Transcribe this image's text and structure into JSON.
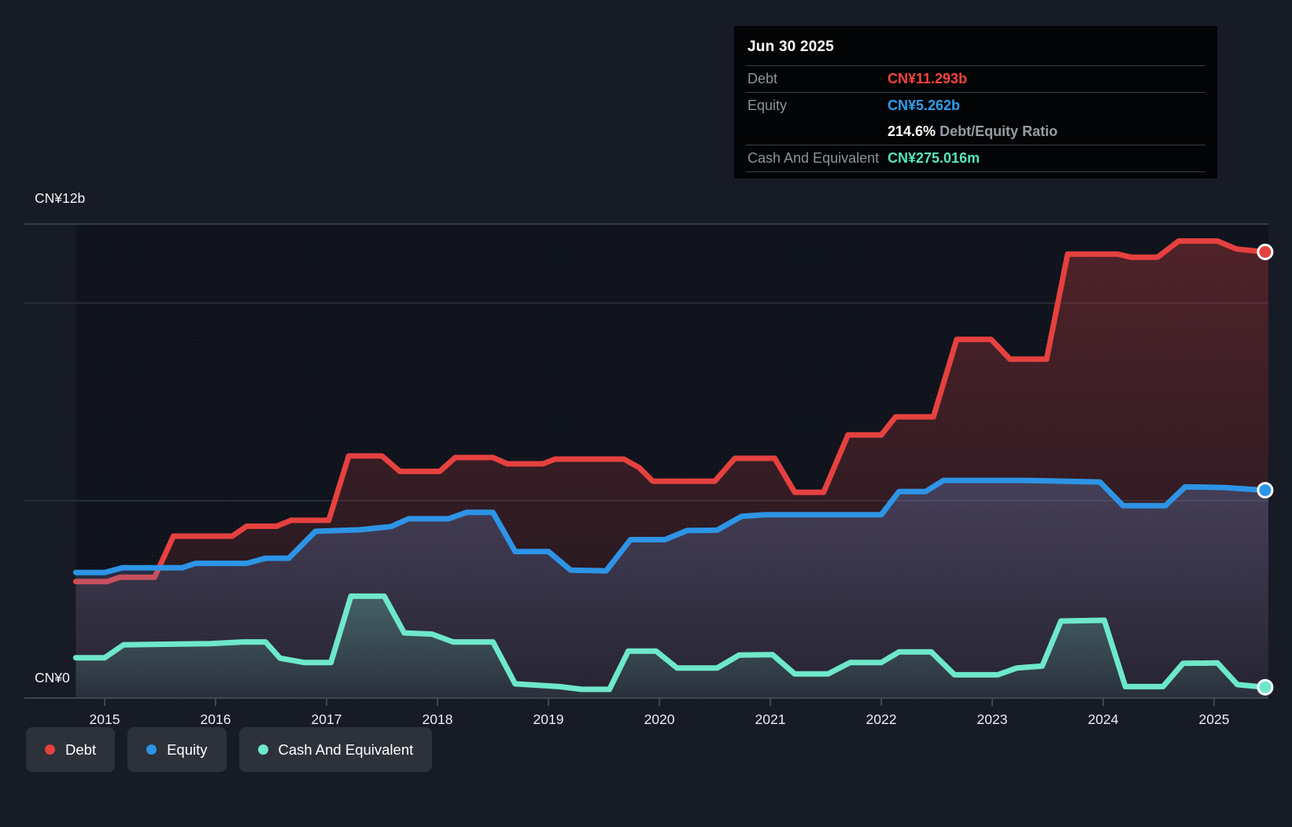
{
  "tooltip": {
    "title": "Jun 30 2025",
    "rows": [
      {
        "label": "Debt",
        "value": "CN¥11.293b",
        "color": "#f2453e"
      },
      {
        "label": "Equity",
        "value": "CN¥5.262b",
        "color": "#2f9ff0"
      },
      {
        "label": "",
        "value": "214.6%",
        "suffix": " Debt/Equity Ratio",
        "color": "#ffffff"
      },
      {
        "label": "Cash And Equivalent",
        "value": "CN¥275.016m",
        "color": "#55e5c0"
      }
    ]
  },
  "legend": {
    "items": [
      {
        "label": "Debt",
        "color": "#e5413f"
      },
      {
        "label": "Equity",
        "color": "#2d94e6"
      },
      {
        "label": "Cash And Equivalent",
        "color": "#6ee8ca"
      }
    ]
  },
  "chart_data": {
    "type": "area",
    "unit": "CN¥ billions",
    "x_axis": {
      "start": 2014.74,
      "end": 2025.46,
      "ticks": [
        "2015",
        "2016",
        "2017",
        "2018",
        "2019",
        "2020",
        "2021",
        "2022",
        "2023",
        "2024",
        "2025"
      ]
    },
    "y_axis": {
      "min": 0,
      "max": 12,
      "gridlines": [
        {
          "value": 12,
          "label": "CN¥12b",
          "strong": true
        },
        {
          "value": 10
        },
        {
          "value": 5
        },
        {
          "value": 0,
          "label": "CN¥0",
          "axis": true
        }
      ]
    },
    "series": [
      {
        "name": "Debt",
        "color": "#e5413f",
        "fill_from": "rgba(226,68,68,0.30)",
        "fill_to": "rgba(226,68,68,0.06)",
        "points": [
          [
            2014.74,
            2.95
          ],
          [
            2015.02,
            2.95
          ],
          [
            2015.14,
            3.06
          ],
          [
            2015.45,
            3.06
          ],
          [
            2015.62,
            4.1
          ],
          [
            2016.15,
            4.1
          ],
          [
            2016.28,
            4.35
          ],
          [
            2016.55,
            4.35
          ],
          [
            2016.68,
            4.5
          ],
          [
            2017.02,
            4.5
          ],
          [
            2017.2,
            6.13
          ],
          [
            2017.5,
            6.13
          ],
          [
            2017.66,
            5.74
          ],
          [
            2018.02,
            5.74
          ],
          [
            2018.16,
            6.09
          ],
          [
            2018.5,
            6.09
          ],
          [
            2018.63,
            5.93
          ],
          [
            2018.95,
            5.93
          ],
          [
            2019.06,
            6.05
          ],
          [
            2019.68,
            6.05
          ],
          [
            2019.82,
            5.83
          ],
          [
            2019.94,
            5.49
          ],
          [
            2020.5,
            5.49
          ],
          [
            2020.68,
            6.07
          ],
          [
            2021.04,
            6.07
          ],
          [
            2021.22,
            5.21
          ],
          [
            2021.48,
            5.21
          ],
          [
            2021.7,
            6.66
          ],
          [
            2022.0,
            6.66
          ],
          [
            2022.13,
            7.12
          ],
          [
            2022.47,
            7.12
          ],
          [
            2022.68,
            9.08
          ],
          [
            2022.99,
            9.08
          ],
          [
            2023.16,
            8.58
          ],
          [
            2023.49,
            8.58
          ],
          [
            2023.68,
            11.24
          ],
          [
            2024.13,
            11.24
          ],
          [
            2024.25,
            11.16
          ],
          [
            2024.49,
            11.16
          ],
          [
            2024.68,
            11.57
          ],
          [
            2025.03,
            11.57
          ],
          [
            2025.2,
            11.37
          ],
          [
            2025.46,
            11.293
          ]
        ]
      },
      {
        "name": "Equity",
        "color": "#2d94e6",
        "fill_from": "rgba(100,130,190,0.34)",
        "fill_to": "rgba(100,130,190,0.12)",
        "points": [
          [
            2014.74,
            3.18
          ],
          [
            2015.0,
            3.18
          ],
          [
            2015.16,
            3.3
          ],
          [
            2015.7,
            3.3
          ],
          [
            2015.82,
            3.41
          ],
          [
            2016.28,
            3.41
          ],
          [
            2016.45,
            3.54
          ],
          [
            2016.66,
            3.54
          ],
          [
            2016.9,
            4.22
          ],
          [
            2017.3,
            4.26
          ],
          [
            2017.58,
            4.34
          ],
          [
            2017.74,
            4.54
          ],
          [
            2018.1,
            4.54
          ],
          [
            2018.26,
            4.7
          ],
          [
            2018.5,
            4.7
          ],
          [
            2018.7,
            3.71
          ],
          [
            2019.0,
            3.71
          ],
          [
            2019.2,
            3.24
          ],
          [
            2019.52,
            3.22
          ],
          [
            2019.74,
            4.01
          ],
          [
            2020.05,
            4.01
          ],
          [
            2020.25,
            4.24
          ],
          [
            2020.52,
            4.25
          ],
          [
            2020.74,
            4.6
          ],
          [
            2020.95,
            4.64
          ],
          [
            2022.0,
            4.64
          ],
          [
            2022.16,
            5.23
          ],
          [
            2022.4,
            5.23
          ],
          [
            2022.56,
            5.51
          ],
          [
            2023.3,
            5.51
          ],
          [
            2023.97,
            5.47
          ],
          [
            2024.18,
            4.87
          ],
          [
            2024.56,
            4.87
          ],
          [
            2024.74,
            5.35
          ],
          [
            2025.1,
            5.33
          ],
          [
            2025.46,
            5.262
          ]
        ]
      },
      {
        "name": "Cash And Equivalent",
        "color": "#6ee8ca",
        "fill_from": "rgba(110,233,200,0.26)",
        "fill_to": "rgba(110,233,200,0.06)",
        "points": [
          [
            2014.74,
            1.02
          ],
          [
            2015.0,
            1.02
          ],
          [
            2015.17,
            1.35
          ],
          [
            2015.95,
            1.38
          ],
          [
            2016.25,
            1.42
          ],
          [
            2016.45,
            1.42
          ],
          [
            2016.58,
            1.01
          ],
          [
            2016.8,
            0.9
          ],
          [
            2017.04,
            0.9
          ],
          [
            2017.22,
            2.58
          ],
          [
            2017.52,
            2.58
          ],
          [
            2017.7,
            1.65
          ],
          [
            2017.95,
            1.62
          ],
          [
            2018.14,
            1.42
          ],
          [
            2018.5,
            1.42
          ],
          [
            2018.7,
            0.36
          ],
          [
            2019.1,
            0.29
          ],
          [
            2019.3,
            0.22
          ],
          [
            2019.55,
            0.22
          ],
          [
            2019.72,
            1.19
          ],
          [
            2019.97,
            1.19
          ],
          [
            2020.16,
            0.76
          ],
          [
            2020.52,
            0.76
          ],
          [
            2020.72,
            1.09
          ],
          [
            2021.02,
            1.1
          ],
          [
            2021.22,
            0.61
          ],
          [
            2021.52,
            0.61
          ],
          [
            2021.72,
            0.9
          ],
          [
            2022.0,
            0.9
          ],
          [
            2022.16,
            1.17
          ],
          [
            2022.45,
            1.17
          ],
          [
            2022.66,
            0.59
          ],
          [
            2023.05,
            0.59
          ],
          [
            2023.22,
            0.76
          ],
          [
            2023.45,
            0.81
          ],
          [
            2023.62,
            1.95
          ],
          [
            2024.01,
            1.97
          ],
          [
            2024.2,
            0.29
          ],
          [
            2024.54,
            0.29
          ],
          [
            2024.72,
            0.88
          ],
          [
            2025.03,
            0.89
          ],
          [
            2025.21,
            0.34
          ],
          [
            2025.46,
            0.275
          ]
        ]
      }
    ]
  }
}
